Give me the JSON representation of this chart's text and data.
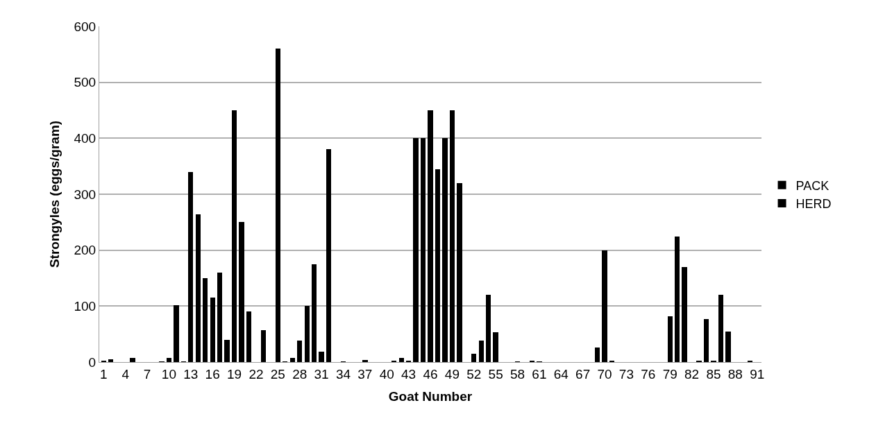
{
  "chart_data": {
    "type": "bar",
    "xlabel": "Goat Number",
    "ylabel": "Strongyles (eggs/gram)",
    "categories": [
      "1",
      null,
      null,
      "4",
      null,
      null,
      "7",
      null,
      null,
      "10",
      null,
      null,
      "13",
      null,
      null,
      "16",
      null,
      null,
      "19",
      null,
      null,
      "22",
      null,
      null,
      "25",
      null,
      null,
      "28",
      null,
      null,
      "31",
      null,
      null,
      "34",
      null,
      null,
      "37",
      null,
      null,
      "40",
      null,
      null,
      "43",
      null,
      null,
      "46",
      null,
      null,
      "49",
      null,
      null,
      "52",
      null,
      null,
      "55",
      null,
      null,
      "58",
      null,
      null,
      "61",
      null,
      null,
      "64",
      null,
      null,
      "67",
      null,
      null,
      "70",
      null,
      null,
      "73",
      null,
      null,
      "76",
      null,
      null,
      "79",
      null,
      null,
      "82",
      null,
      null,
      "85",
      null,
      null,
      "88",
      null,
      null,
      "91"
    ],
    "series": [
      {
        "name": "PACK",
        "color": "#000000",
        "values": [
          null,
          null,
          null,
          null,
          null,
          null,
          null,
          null,
          null,
          null,
          null,
          null,
          null,
          null,
          null,
          null,
          null,
          null,
          null,
          null,
          null,
          null,
          null,
          null,
          null,
          null,
          null,
          null,
          null,
          null,
          null,
          null,
          null,
          null,
          null,
          null,
          null,
          null,
          null,
          null,
          null,
          null,
          null,
          400,
          400,
          450,
          345,
          400,
          450,
          320,
          null,
          15,
          38,
          120,
          53,
          null,
          null,
          1,
          null,
          2,
          1,
          null,
          null,
          null,
          null,
          null,
          null,
          null,
          26,
          200,
          3,
          null,
          null,
          null,
          null,
          null,
          null,
          null,
          82,
          225,
          170,
          null,
          3,
          77,
          3,
          120,
          55,
          null,
          null,
          3,
          null
        ]
      },
      {
        "name": "HERD",
        "color": "#000000",
        "values": [
          3,
          5,
          null,
          null,
          7,
          null,
          null,
          null,
          1,
          7,
          102,
          1,
          340,
          264,
          150,
          115,
          160,
          40,
          450,
          250,
          90,
          null,
          57,
          null,
          560,
          1,
          7,
          39,
          100,
          175,
          18,
          380,
          null,
          1,
          null,
          null,
          4,
          null,
          null,
          null,
          2,
          8,
          3,
          null,
          null,
          null,
          null,
          null,
          null,
          null,
          null,
          null,
          null,
          null,
          null,
          null,
          null,
          null,
          null,
          null,
          null,
          null,
          null,
          null,
          null,
          null,
          null,
          null,
          null,
          null,
          null,
          null,
          null,
          null,
          null,
          null,
          null,
          null,
          null,
          null,
          null,
          null,
          null,
          null,
          null,
          null,
          null,
          null,
          null,
          null,
          null
        ]
      }
    ],
    "stacked": true,
    "ylim": [
      0,
      600
    ],
    "yticks": [
      0,
      100,
      200,
      300,
      400,
      500,
      600
    ],
    "grid": "y",
    "legend": "right"
  }
}
